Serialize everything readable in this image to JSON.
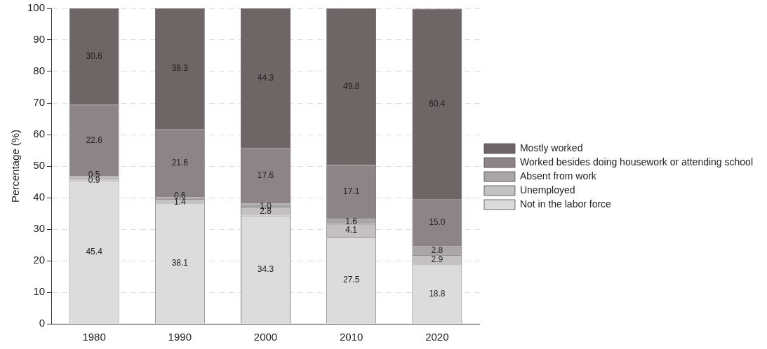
{
  "chart_data": {
    "type": "bar",
    "stacked": true,
    "ylabel": "Percentage (%)",
    "categories": [
      "1980",
      "1990",
      "2000",
      "2010",
      "2020"
    ],
    "series": [
      {
        "name": "Not in the labor force",
        "color": "#dddcdc",
        "values": [
          45.4,
          38.1,
          34.3,
          27.5,
          18.8
        ],
        "value_labels": [
          "45.4",
          "38.1",
          "34.3",
          "27.5",
          "18.8"
        ]
      },
      {
        "name": "Unemployed",
        "color": "#c4c1c2",
        "values": [
          0.9,
          1.4,
          2.8,
          4.1,
          2.9
        ],
        "value_labels": [
          "0.9",
          "1.4",
          "2.8",
          "4.1",
          "2.9"
        ]
      },
      {
        "name": "Absent from work",
        "color": "#aaa5a6",
        "values": [
          0.5,
          0.6,
          1.0,
          1.6,
          2.8
        ],
        "value_labels": [
          "0.5",
          "0.6",
          "1.0",
          "1.6",
          "2.8"
        ]
      },
      {
        "name": "Worked besides doing housework or attending school",
        "color": "#8c8486",
        "values": [
          22.6,
          21.6,
          17.6,
          17.1,
          15.0
        ],
        "value_labels": [
          "22.6",
          "21.6",
          "17.6",
          "17.1",
          "15.0"
        ]
      },
      {
        "name": "Mostly worked",
        "color": "#6e6567",
        "values": [
          30.6,
          38.3,
          44.3,
          49.8,
          60.4
        ],
        "value_labels": [
          "30.6",
          "38.3",
          "44.3",
          "49.8",
          "60.4"
        ]
      }
    ],
    "ylim": [
      0,
      100
    ],
    "yticks": [
      0,
      10,
      20,
      30,
      40,
      50,
      60,
      70,
      80,
      90,
      100
    ],
    "grid": "y",
    "legend": "right"
  }
}
